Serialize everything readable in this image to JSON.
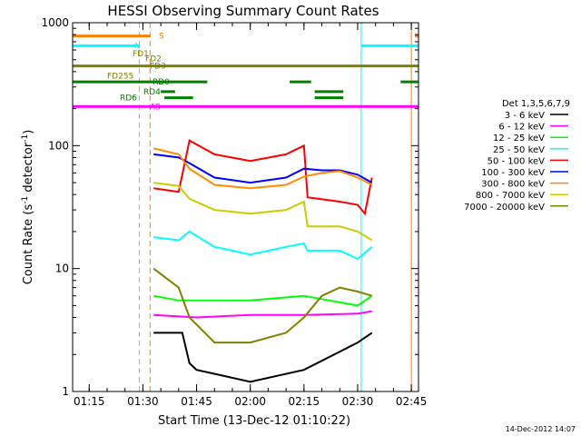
{
  "chart_data": {
    "type": "line",
    "title": "HESSI Observing Summary Count Rates",
    "xlabel": "Start Time (13-Dec-12 01:10:22)",
    "ylabel": "Count Rate (s⁻¹ detector⁻¹)",
    "ylabel_main": "Count Rate (s",
    "ylabel_sup1": "-1",
    "ylabel_mid": " detector",
    "ylabel_sup2": "-1",
    "ylabel_end": ")",
    "yscale": "log",
    "xlim": [
      "01:10:22",
      "02:47:00"
    ],
    "ylim": [
      1,
      1000
    ],
    "xticks": [
      "01:15",
      "01:30",
      "01:45",
      "02:00",
      "02:15",
      "02:30",
      "02:45"
    ],
    "yticks": [
      "1",
      "10",
      "100",
      "1000"
    ],
    "legend_title": "Det 1,3,5,6,7,9",
    "legend_placement": "right",
    "footer": "14-Dec-2012 14:07",
    "series": [
      {
        "name": "3 - 6 keV",
        "color": "#000000",
        "points": [
          [
            "01:33",
            3
          ],
          [
            "01:41",
            3
          ],
          [
            "01:43",
            1.7
          ],
          [
            "01:45",
            1.5
          ],
          [
            "02:00",
            1.2
          ],
          [
            "02:15",
            1.5
          ],
          [
            "02:30",
            2.5
          ],
          [
            "02:34",
            3
          ]
        ]
      },
      {
        "name": "6 - 12 keV",
        "color": "#ff00ff",
        "points": [
          [
            "01:33",
            4.2
          ],
          [
            "01:45",
            4
          ],
          [
            "02:00",
            4.2
          ],
          [
            "02:15",
            4.2
          ],
          [
            "02:30",
            4.3
          ],
          [
            "02:34",
            4.5
          ]
        ]
      },
      {
        "name": "12 - 25 keV",
        "color": "#00ff00",
        "points": [
          [
            "01:33",
            6
          ],
          [
            "01:40",
            5.5
          ],
          [
            "01:45",
            5.5
          ],
          [
            "02:00",
            5.5
          ],
          [
            "02:15",
            6
          ],
          [
            "02:30",
            5
          ],
          [
            "02:34",
            6
          ]
        ]
      },
      {
        "name": "25 - 50 keV",
        "color": "#00ffff",
        "points": [
          [
            "01:33",
            18
          ],
          [
            "01:40",
            17
          ],
          [
            "01:43",
            20
          ],
          [
            "01:50",
            15
          ],
          [
            "02:00",
            13
          ],
          [
            "02:10",
            15
          ],
          [
            "02:15",
            16
          ],
          [
            "02:16",
            14
          ],
          [
            "02:25",
            14
          ],
          [
            "02:30",
            12
          ],
          [
            "02:34",
            15
          ]
        ]
      },
      {
        "name": "50 - 100 keV",
        "color": "#ff0000",
        "points": [
          [
            "01:33",
            45
          ],
          [
            "01:40",
            42
          ],
          [
            "01:43",
            110
          ],
          [
            "01:50",
            85
          ],
          [
            "02:00",
            75
          ],
          [
            "02:10",
            85
          ],
          [
            "02:15",
            100
          ],
          [
            "02:16",
            38
          ],
          [
            "02:25",
            35
          ],
          [
            "02:30",
            33
          ],
          [
            "02:32",
            28
          ],
          [
            "02:34",
            55
          ]
        ]
      },
      {
        "name": "100 - 300 keV",
        "color": "#0000ff",
        "points": [
          [
            "01:33",
            85
          ],
          [
            "01:40",
            80
          ],
          [
            "01:43",
            72
          ],
          [
            "01:50",
            55
          ],
          [
            "02:00",
            50
          ],
          [
            "02:10",
            55
          ],
          [
            "02:15",
            65
          ],
          [
            "02:20",
            63
          ],
          [
            "02:25",
            63
          ],
          [
            "02:30",
            58
          ],
          [
            "02:34",
            50
          ]
        ]
      },
      {
        "name": "300 - 800 keV",
        "color": "#ff8c00",
        "points": [
          [
            "01:33",
            95
          ],
          [
            "01:40",
            85
          ],
          [
            "01:43",
            65
          ],
          [
            "01:50",
            48
          ],
          [
            "02:00",
            45
          ],
          [
            "02:10",
            48
          ],
          [
            "02:15",
            56
          ],
          [
            "02:20",
            60
          ],
          [
            "02:25",
            62
          ],
          [
            "02:30",
            55
          ],
          [
            "02:34",
            48
          ]
        ]
      },
      {
        "name": "800 - 7000 keV",
        "color": "#cccc00",
        "points": [
          [
            "01:33",
            50
          ],
          [
            "01:40",
            47
          ],
          [
            "01:43",
            37
          ],
          [
            "01:50",
            30
          ],
          [
            "02:00",
            28
          ],
          [
            "02:10",
            30
          ],
          [
            "02:15",
            35
          ],
          [
            "02:16",
            22
          ],
          [
            "02:25",
            22
          ],
          [
            "02:30",
            20
          ],
          [
            "02:34",
            17
          ]
        ]
      },
      {
        "name": "7000 - 20000 keV",
        "color": "#808000",
        "points": [
          [
            "01:33",
            10
          ],
          [
            "01:40",
            7
          ],
          [
            "01:43",
            4
          ],
          [
            "01:50",
            2.5
          ],
          [
            "02:00",
            2.5
          ],
          [
            "02:10",
            3
          ],
          [
            "02:15",
            4
          ],
          [
            "02:20",
            6
          ],
          [
            "02:25",
            7
          ],
          [
            "02:30",
            6.5
          ],
          [
            "02:34",
            6
          ]
        ]
      }
    ],
    "state_bars": [
      {
        "label": "S",
        "color": "#ff8000",
        "segments": [
          [
            "01:10:22",
            "01:32"
          ],
          [
            "02:46",
            "02:47"
          ]
        ],
        "level": 780
      },
      {
        "label": "N",
        "color": "#00ffff",
        "segments": [
          [
            "01:10:22",
            "01:29"
          ],
          [
            "02:31",
            "02:47"
          ]
        ],
        "level": 650
      },
      {
        "label": "FD1",
        "color": "#808000",
        "segments": [],
        "level": 560
      },
      {
        "label": "FD2",
        "color": "#808000",
        "segments": [],
        "level": 510
      },
      {
        "label": "FD3",
        "color": "#808000",
        "segments": [
          [
            "01:10:22",
            "02:47"
          ]
        ],
        "level": 445
      },
      {
        "label": "FD255",
        "color": "#808000",
        "segments": [],
        "level": 370
      },
      {
        "label": "RD0",
        "color": "#008000",
        "segments": [
          [
            "01:10:22",
            "01:48"
          ],
          [
            "02:11",
            "02:17"
          ],
          [
            "02:42",
            "02:47"
          ]
        ],
        "level": 330
      },
      {
        "label": "RD4",
        "color": "#008000",
        "segments": [
          [
            "01:35",
            "01:39"
          ],
          [
            "02:18",
            "02:26"
          ]
        ],
        "level": 275
      },
      {
        "label": "RD6",
        "color": "#008000",
        "segments": [
          [
            "01:36",
            "01:44"
          ],
          [
            "02:18",
            "02:26"
          ]
        ],
        "level": 245
      },
      {
        "label": "AS",
        "color": "#ff00ff",
        "segments": [
          [
            "01:10:22",
            "02:47"
          ]
        ],
        "level": 208
      }
    ],
    "vlines": [
      {
        "at": "01:29",
        "color": "#00ffff",
        "style": "dashed"
      },
      {
        "at": "01:32",
        "color": "#ff8000",
        "style": "dashed"
      },
      {
        "at": "02:31",
        "color": "#00ffff",
        "style": "solid"
      },
      {
        "at": "02:45",
        "color": "#ff8000",
        "style": "solid"
      }
    ]
  }
}
